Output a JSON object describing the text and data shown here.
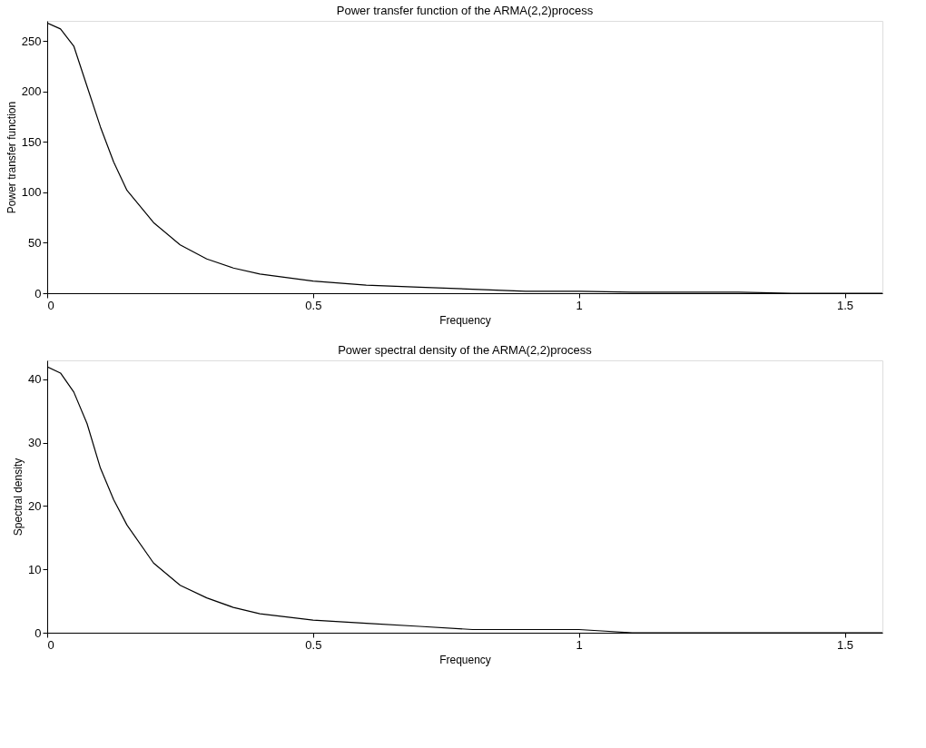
{
  "chart_data": [
    {
      "type": "line",
      "title": "Power transfer function of the ARMA(2,2)process",
      "xlabel": "Frequency",
      "ylabel": "Power transfer function",
      "x": [
        0,
        0.025,
        0.05,
        0.075,
        0.1,
        0.125,
        0.15,
        0.2,
        0.25,
        0.3,
        0.35,
        0.4,
        0.5,
        0.6,
        0.7,
        0.8,
        0.9,
        1.0,
        1.1,
        1.2,
        1.3,
        1.4,
        1.5708
      ],
      "series": [
        {
          "color": "#000000",
          "values": [
            268,
            262,
            245,
            205,
            165,
            130,
            102,
            70,
            48,
            34,
            25,
            19,
            12,
            8,
            6,
            4,
            2,
            2,
            1,
            1,
            1,
            0,
            0
          ]
        }
      ],
      "xlim": [
        0,
        1.5708
      ],
      "xticks": [
        0,
        0.5,
        1,
        1.5
      ],
      "ylim": [
        0,
        270
      ],
      "yticks": [
        0,
        50,
        100,
        150,
        200,
        250
      ],
      "grid": false,
      "line_style": "solid",
      "marker": "none"
    },
    {
      "type": "line",
      "title": "Power spectral density of the ARMA(2,2)process",
      "xlabel": "Frequency",
      "ylabel": "Spectral density",
      "x": [
        0,
        0.025,
        0.05,
        0.075,
        0.1,
        0.125,
        0.15,
        0.2,
        0.25,
        0.3,
        0.35,
        0.4,
        0.5,
        0.6,
        0.7,
        0.8,
        0.9,
        1.0,
        1.1,
        1.2,
        1.3,
        1.4,
        1.5708
      ],
      "series": [
        {
          "color": "#000000",
          "values": [
            42,
            41,
            38,
            33,
            26,
            21,
            17,
            11,
            7.5,
            5.5,
            4,
            3,
            2,
            1.5,
            1,
            0.5,
            0.5,
            0.5,
            0,
            0,
            0,
            0,
            0
          ]
        }
      ],
      "xlim": [
        0,
        1.5708
      ],
      "xticks": [
        0,
        0.5,
        1,
        1.5
      ],
      "ylim": [
        0,
        43
      ],
      "yticks": [
        0,
        10,
        20,
        30,
        40
      ],
      "grid": false,
      "line_style": "solid",
      "marker": "none"
    }
  ]
}
